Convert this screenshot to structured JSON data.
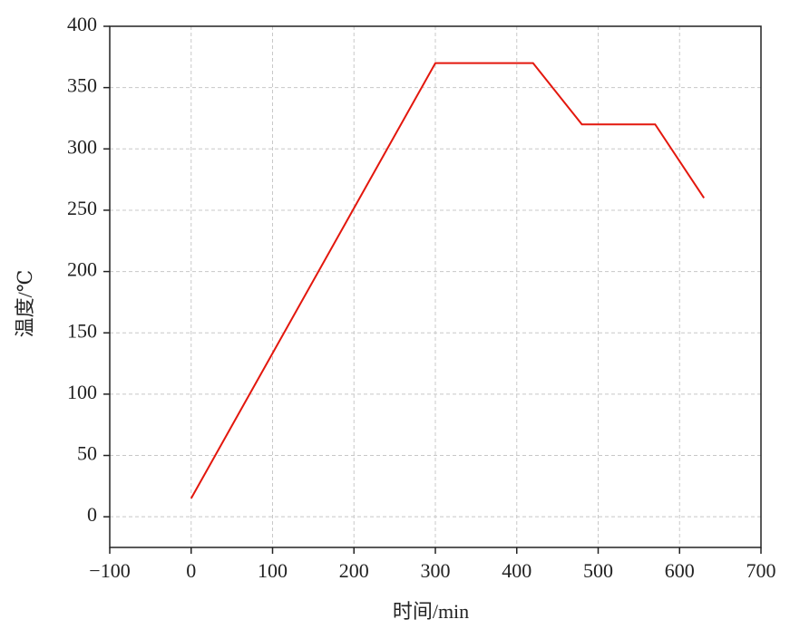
{
  "chart_data": {
    "type": "line",
    "x_label": "时间/min",
    "y_label": "温度/℃",
    "x": [
      0,
      300,
      420,
      480,
      570,
      630
    ],
    "series": [
      {
        "color": "#e3170d",
        "values": [
          15,
          370,
          370,
          320,
          320,
          260
        ]
      }
    ],
    "xlim": [
      -100,
      700
    ],
    "xticks": [
      {
        "value": -100,
        "label": "−100"
      },
      0,
      100,
      200,
      300,
      400,
      500,
      600,
      700
    ],
    "ylim": [
      -25,
      400
    ],
    "yticks": [
      0,
      50,
      100,
      150,
      200,
      250,
      300,
      350,
      400
    ],
    "grid": true
  }
}
